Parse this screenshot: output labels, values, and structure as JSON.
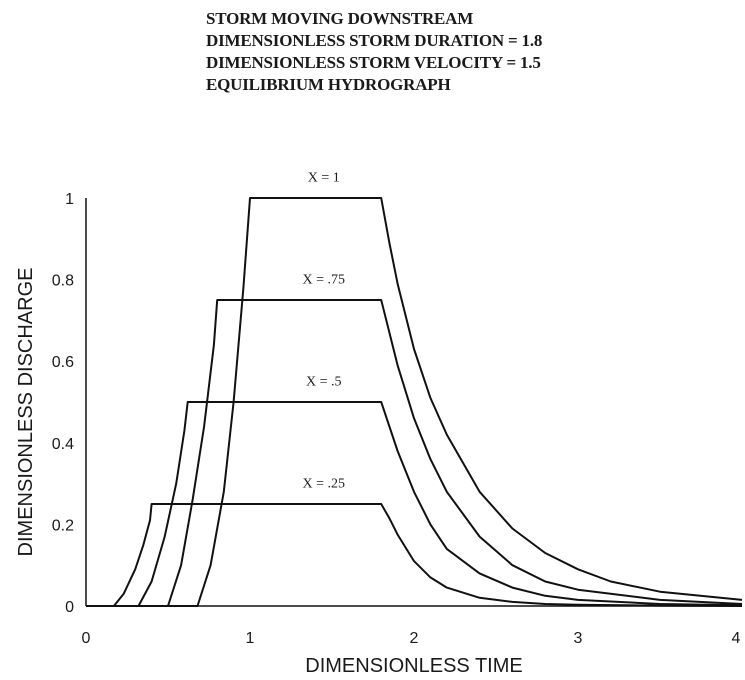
{
  "chart_data": {
    "type": "line",
    "title_lines": [
      "STORM MOVING DOWNSTREAM",
      "DIMENSIONLESS STORM DURATION = 1.8",
      "DIMENSIONLESS STORM VELOCITY = 1.5",
      "EQUILIBRIUM HYDROGRAPH"
    ],
    "xlabel": "DIMENSIONLESS TIME",
    "ylabel": "DIMENSIONLESS DISCHARGE",
    "xlim": [
      0,
      4
    ],
    "ylim": [
      0,
      1
    ],
    "x_ticks": [
      "0",
      "1",
      "2",
      "3",
      "4"
    ],
    "y_ticks": [
      "0",
      "0.2",
      "0.4",
      "0.6",
      "0.8",
      "1"
    ],
    "grid": false,
    "series": [
      {
        "name": "X = .25",
        "x": [
          0,
          0.17,
          0.23,
          0.3,
          0.35,
          0.39,
          0.4,
          1.8,
          1.85,
          1.9,
          2.0,
          2.1,
          2.2,
          2.4,
          2.6,
          2.8,
          3.0,
          3.5,
          4.0
        ],
        "y": [
          0,
          0,
          0.03,
          0.09,
          0.15,
          0.21,
          0.25,
          0.25,
          0.215,
          0.175,
          0.11,
          0.07,
          0.045,
          0.02,
          0.01,
          0.005,
          0.003,
          0.001,
          0
        ]
      },
      {
        "name": "X = .5",
        "x": [
          0,
          0.32,
          0.4,
          0.48,
          0.55,
          0.6,
          0.62,
          1.8,
          1.85,
          1.9,
          2.0,
          2.1,
          2.2,
          2.4,
          2.6,
          2.8,
          3.0,
          3.5,
          4.0
        ],
        "y": [
          0,
          0,
          0.06,
          0.17,
          0.3,
          0.43,
          0.5,
          0.5,
          0.44,
          0.38,
          0.28,
          0.2,
          0.14,
          0.08,
          0.045,
          0.025,
          0.015,
          0.005,
          0.002
        ]
      },
      {
        "name": "X = .75",
        "x": [
          0,
          0.5,
          0.58,
          0.65,
          0.72,
          0.78,
          0.8,
          1.8,
          1.85,
          1.9,
          2.0,
          2.1,
          2.2,
          2.4,
          2.6,
          2.8,
          3.0,
          3.5,
          4.0
        ],
        "y": [
          0,
          0,
          0.1,
          0.26,
          0.44,
          0.64,
          0.75,
          0.75,
          0.67,
          0.59,
          0.46,
          0.36,
          0.28,
          0.17,
          0.1,
          0.06,
          0.04,
          0.015,
          0.005
        ]
      },
      {
        "name": "X = 1",
        "x": [
          0,
          0.68,
          0.76,
          0.84,
          0.9,
          0.96,
          1.0,
          1.8,
          1.85,
          1.9,
          2.0,
          2.1,
          2.2,
          2.4,
          2.6,
          2.8,
          3.0,
          3.2,
          3.5,
          4.0
        ],
        "y": [
          0,
          0,
          0.1,
          0.28,
          0.5,
          0.78,
          1.0,
          1.0,
          0.89,
          0.79,
          0.63,
          0.51,
          0.42,
          0.28,
          0.19,
          0.13,
          0.09,
          0.06,
          0.035,
          0.015
        ]
      }
    ],
    "curve_labels": [
      {
        "text": "X =  1",
        "x": 1.45,
        "y": 1.05
      },
      {
        "text": "X = .75",
        "x": 1.45,
        "y": 0.8
      },
      {
        "text": "X = .5",
        "x": 1.45,
        "y": 0.55
      },
      {
        "text": "X = .25",
        "x": 1.45,
        "y": 0.3
      }
    ]
  }
}
